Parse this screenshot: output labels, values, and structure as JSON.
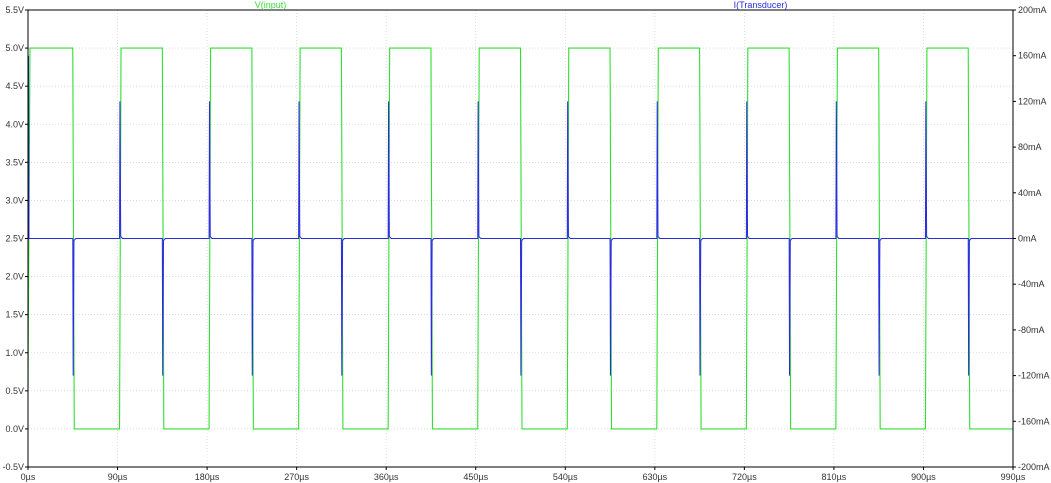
{
  "chart_data": {
    "type": "line",
    "title_left": "V(input)",
    "title_right": "I(Transducer)",
    "colors": {
      "v": "#33dd33",
      "i": "#2a2ae0",
      "grid": "#c8c8c8",
      "axis": "#000000",
      "text": "#333333"
    },
    "x_axis": {
      "unit": "µs",
      "range": [
        0,
        990
      ],
      "ticks": [
        "0µs",
        "90µs",
        "180µs",
        "270µs",
        "360µs",
        "450µs",
        "540µs",
        "630µs",
        "720µs",
        "810µs",
        "900µs",
        "990µs"
      ]
    },
    "y_left": {
      "range": [
        -0.5,
        5.5
      ],
      "ticks": [
        "-0.5V",
        "0.0V",
        "0.5V",
        "1.0V",
        "1.5V",
        "2.0V",
        "2.5V",
        "3.0V",
        "3.5V",
        "4.0V",
        "4.5V",
        "5.0V",
        "5.5V"
      ]
    },
    "y_right": {
      "range": [
        -200,
        200
      ],
      "ticks": [
        "-200mA",
        "-160mA",
        "-120mA",
        "-80mA",
        "-40mA",
        "0mA",
        "40mA",
        "80mA",
        "120mA",
        "160mA",
        "200mA"
      ]
    },
    "grid": true,
    "series": [
      {
        "name": "V(input)",
        "axis": "left",
        "kind": "square",
        "high": 5.0,
        "low": 0.0,
        "first_rise_us": 2,
        "first_fall_us": 45,
        "period_us": 90,
        "high_duration_us": 43,
        "end_us": 990
      },
      {
        "name": "I(Transducer)",
        "axis": "right",
        "kind": "spikes",
        "baseline": 0,
        "positive_spike_mA": 120,
        "negative_spike_mA": -120
      }
    ]
  }
}
